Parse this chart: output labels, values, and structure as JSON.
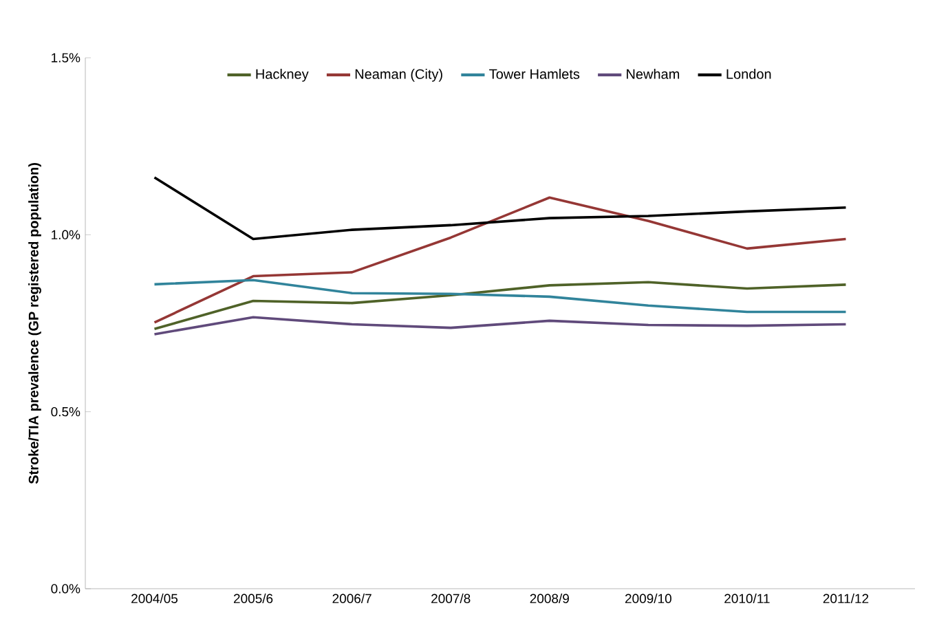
{
  "chart_data": {
    "type": "line",
    "ylabel": "Stroke/TIA prevalence (GP registered population)",
    "categories": [
      "2004/05",
      "2005/6",
      "2006/7",
      "2007/8",
      "2008/9",
      "2009/10",
      "2010/11",
      "2011/12"
    ],
    "series": [
      {
        "name": "Hackney",
        "color": "#4f6228",
        "values": [
          0.734,
          0.813,
          0.807,
          0.829,
          0.857,
          0.866,
          0.848,
          0.859
        ]
      },
      {
        "name": "Neaman (City)",
        "color": "#953735",
        "values": [
          0.752,
          0.883,
          0.894,
          0.992,
          1.105,
          1.039,
          0.961,
          0.988
        ]
      },
      {
        "name": "Tower Hamlets",
        "color": "#31849b",
        "values": [
          0.86,
          0.872,
          0.835,
          0.833,
          0.825,
          0.8,
          0.782,
          0.782
        ]
      },
      {
        "name": "Newham",
        "color": "#604a7b",
        "values": [
          0.719,
          0.767,
          0.747,
          0.737,
          0.757,
          0.745,
          0.743,
          0.747
        ]
      },
      {
        "name": "London",
        "color": "#000000",
        "values": [
          1.162,
          0.988,
          1.014,
          1.027,
          1.047,
          1.053,
          1.066,
          1.077
        ]
      }
    ],
    "ylim": [
      0,
      1.5
    ],
    "yticks": [
      {
        "value": 0,
        "label": "0.0%"
      },
      {
        "value": 0.5,
        "label": "0.5%"
      },
      {
        "value": 1.0,
        "label": "1.0%"
      },
      {
        "value": 1.5,
        "label": "1.5%"
      }
    ],
    "grid": false,
    "legend": "top",
    "marker": "none",
    "line_style": "solid"
  }
}
